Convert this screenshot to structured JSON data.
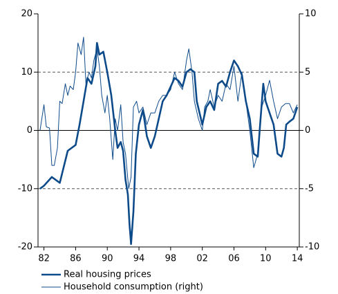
{
  "chart_data": {
    "type": "line",
    "xlim": [
      1981.25,
      2014.25
    ],
    "xticks": [
      {
        "value": 1982,
        "label": "82"
      },
      {
        "value": 1986,
        "label": "86"
      },
      {
        "value": 1990,
        "label": "90"
      },
      {
        "value": 1994,
        "label": "94"
      },
      {
        "value": 1998,
        "label": "98"
      },
      {
        "value": 2002,
        "label": "02"
      },
      {
        "value": 2006,
        "label": "06"
      },
      {
        "value": 2010,
        "label": "10"
      },
      {
        "value": 2014,
        "label": "14"
      }
    ],
    "ylim": [
      -20,
      20
    ],
    "yticks": [
      -20,
      -10,
      0,
      10,
      20
    ],
    "y2lim": [
      -10,
      10
    ],
    "y2ticks": [
      -10,
      -5,
      0,
      5,
      10
    ],
    "grid": true,
    "legend": "bottom-left",
    "series": [
      {
        "name": "Real housing prices",
        "color": "#0d4a8a",
        "width": 2.6,
        "x": [
          1981.5,
          1982,
          1983,
          1984,
          1985,
          1986,
          1986.5,
          1987,
          1987.5,
          1988,
          1988.5,
          1988.7,
          1989,
          1989.5,
          1990,
          1990.5,
          1991,
          1991.3,
          1991.7,
          1992,
          1992.3,
          1992.6,
          1992.8,
          1993,
          1993.3,
          1993.6,
          1994,
          1994.5,
          1995,
          1995.5,
          1996,
          1996.5,
          1997,
          1997.5,
          1998,
          1998.5,
          1999,
          1999.5,
          2000,
          2000.5,
          2001,
          2001.3,
          2002,
          2002.5,
          2003,
          2003.5,
          2004,
          2004.5,
          2005,
          2005.5,
          2006,
          2006.5,
          2007,
          2007.5,
          2008,
          2008.5,
          2009,
          2009.3,
          2009.7,
          2010,
          2010.5,
          2011,
          2011.5,
          2012,
          2012.3,
          2012.6,
          2013,
          2013.5,
          2014
        ],
        "values": [
          -10,
          -9.5,
          -8,
          -9,
          -3.5,
          -2.5,
          1,
          5,
          9,
          8,
          11,
          15,
          13,
          13.5,
          10,
          6,
          0,
          -3,
          -2,
          -3.5,
          -8.5,
          -11,
          -16,
          -19.5,
          -14,
          -4,
          1,
          3.5,
          -1,
          -3,
          -1,
          2,
          5,
          6,
          7.5,
          9,
          8.5,
          7.5,
          10,
          10.5,
          10,
          5,
          1,
          4,
          5,
          3.5,
          8,
          8.5,
          7.5,
          10,
          12,
          11,
          9.5,
          5,
          2,
          -4,
          -4.5,
          1,
          8,
          5,
          3,
          1,
          -4,
          -4.5,
          -3,
          1,
          1.5,
          2,
          4
        ]
      },
      {
        "name": "Household consumption (right)",
        "color": "#0d4a8a",
        "width": 1,
        "axis": "y2",
        "x": [
          1981.5,
          1982,
          1982.3,
          1982.7,
          1983,
          1983.3,
          1983.7,
          1984,
          1984.3,
          1984.7,
          1985,
          1985.3,
          1985.7,
          1986,
          1986.3,
          1986.7,
          1987,
          1987.3,
          1987.7,
          1988,
          1988.3,
          1988.7,
          1989,
          1989.3,
          1989.7,
          1990,
          1990.3,
          1990.7,
          1991,
          1991.3,
          1991.7,
          1992,
          1992.3,
          1992.7,
          1993,
          1993.3,
          1993.7,
          1994,
          1994.5,
          1995,
          1995.5,
          1996,
          1996.5,
          1997,
          1997.5,
          1998,
          1998.5,
          1999,
          1999.5,
          2000,
          2000.3,
          2000.7,
          2001,
          2001.5,
          2002,
          2002.3,
          2002.7,
          2003,
          2003.5,
          2004,
          2004.5,
          2005,
          2005.5,
          2006,
          2006.5,
          2007,
          2007.5,
          2008,
          2008.5,
          2009,
          2009.5,
          2010,
          2010.5,
          2011,
          2011.5,
          2012,
          2012.5,
          2013,
          2013.5,
          2014
        ],
        "values": [
          0,
          2.2,
          0.3,
          0.2,
          -3,
          -3,
          -1.5,
          2.5,
          2.3,
          4,
          3,
          3.8,
          3.5,
          5,
          7.5,
          6.5,
          8,
          4,
          5,
          4.5,
          6,
          7,
          5.5,
          3,
          1.5,
          3,
          1,
          -2.5,
          1,
          0,
          2.2,
          -1,
          -2,
          -5,
          -4,
          2,
          2.5,
          1.5,
          2,
          0.5,
          1.5,
          1.5,
          2.5,
          3,
          3,
          3.5,
          5,
          4,
          3.5,
          6,
          7,
          5,
          2.5,
          1,
          0,
          2,
          2.5,
          3.5,
          2,
          3,
          2.5,
          4,
          3.5,
          5.5,
          2.5,
          5,
          2.5,
          0,
          -3.2,
          -2,
          2,
          3,
          4.3,
          2.5,
          1,
          2,
          2.3,
          2.3,
          1.5,
          2.2
        ]
      }
    ]
  }
}
